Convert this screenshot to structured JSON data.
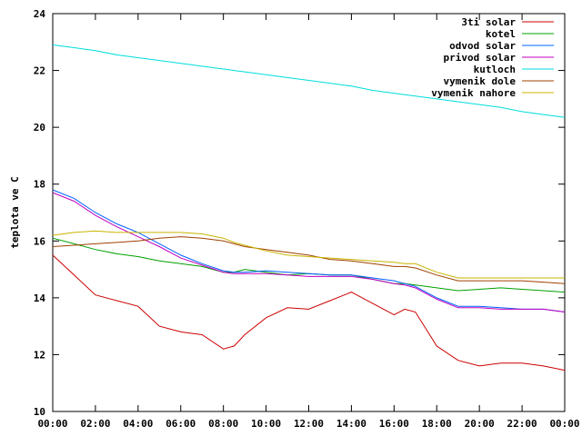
{
  "chart_data": {
    "type": "line",
    "title": "",
    "xlabel": "",
    "ylabel": "teplota ve C",
    "xlim": [
      0,
      24
    ],
    "ylim": [
      10,
      24
    ],
    "x_ticks": [
      "00:00",
      "02:00",
      "04:00",
      "06:00",
      "08:00",
      "10:00",
      "12:00",
      "14:00",
      "16:00",
      "18:00",
      "20:00",
      "22:00",
      "00:00"
    ],
    "y_ticks": [
      "10",
      "12",
      "14",
      "16",
      "18",
      "20",
      "22",
      "24"
    ],
    "grid": false,
    "legend_position": "top-right",
    "x": [
      0,
      1,
      2,
      3,
      4,
      5,
      6,
      7,
      8,
      8.5,
      9,
      10,
      11,
      12,
      13,
      14,
      15,
      16,
      16.5,
      17,
      18,
      19,
      20,
      21,
      22,
      23,
      24
    ],
    "series": [
      {
        "name": "3ti solar",
        "color": "#cc0000",
        "values": [
          15.5,
          14.8,
          14.1,
          13.9,
          13.7,
          13.0,
          12.8,
          12.7,
          12.2,
          12.3,
          12.7,
          13.3,
          13.65,
          13.6,
          13.9,
          14.2,
          13.8,
          13.4,
          13.6,
          13.5,
          12.3,
          11.8,
          11.6,
          11.7,
          11.7,
          11.6,
          11.45
        ]
      },
      {
        "name": "kotel",
        "color": "#00a000",
        "values": [
          16.1,
          15.9,
          15.7,
          15.55,
          15.45,
          15.3,
          15.2,
          15.1,
          14.9,
          14.9,
          15.0,
          14.9,
          14.8,
          14.85,
          14.8,
          14.8,
          14.65,
          14.5,
          14.5,
          14.45,
          14.35,
          14.25,
          14.3,
          14.35,
          14.3,
          14.25,
          14.2
        ]
      },
      {
        "name": "odvod solar",
        "color": "#0060ff",
        "values": [
          17.8,
          17.5,
          17.0,
          16.6,
          16.3,
          15.9,
          15.5,
          15.2,
          14.95,
          14.9,
          14.9,
          14.95,
          14.9,
          14.85,
          14.8,
          14.8,
          14.7,
          14.6,
          14.5,
          14.4,
          14.0,
          13.7,
          13.7,
          13.65,
          13.6,
          13.6,
          13.5
        ]
      },
      {
        "name": "privod solar",
        "color": "#c000c0",
        "values": [
          17.7,
          17.4,
          16.9,
          16.5,
          16.15,
          15.8,
          15.4,
          15.15,
          14.9,
          14.85,
          14.85,
          14.85,
          14.8,
          14.75,
          14.75,
          14.75,
          14.65,
          14.5,
          14.45,
          14.35,
          13.95,
          13.65,
          13.65,
          13.6,
          13.6,
          13.6,
          13.5
        ]
      },
      {
        "name": "kutloch",
        "color": "#00dcdc",
        "values": [
          22.9,
          22.8,
          22.7,
          22.55,
          22.45,
          22.35,
          22.25,
          22.15,
          22.05,
          22.0,
          21.95,
          21.85,
          21.75,
          21.65,
          21.55,
          21.45,
          21.3,
          21.2,
          21.15,
          21.1,
          21.0,
          20.9,
          20.8,
          20.7,
          20.55,
          20.45,
          20.35
        ]
      },
      {
        "name": "vymenik dole",
        "color": "#a04000",
        "values": [
          15.8,
          15.85,
          15.9,
          15.95,
          16.0,
          16.1,
          16.15,
          16.1,
          16.0,
          15.9,
          15.8,
          15.7,
          15.6,
          15.5,
          15.35,
          15.3,
          15.2,
          15.1,
          15.1,
          15.05,
          14.8,
          14.6,
          14.6,
          14.6,
          14.6,
          14.55,
          14.5
        ]
      },
      {
        "name": "vymenik nahore",
        "color": "#c8b400",
        "values": [
          16.2,
          16.3,
          16.35,
          16.3,
          16.3,
          16.3,
          16.3,
          16.25,
          16.1,
          15.95,
          15.85,
          15.65,
          15.5,
          15.45,
          15.4,
          15.35,
          15.3,
          15.25,
          15.2,
          15.2,
          14.9,
          14.7,
          14.7,
          14.7,
          14.7,
          14.7,
          14.7
        ]
      }
    ]
  }
}
